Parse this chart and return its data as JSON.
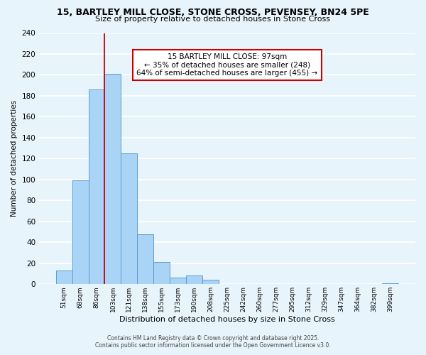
{
  "title": "15, BARTLEY MILL CLOSE, STONE CROSS, PEVENSEY, BN24 5PE",
  "subtitle": "Size of property relative to detached houses in Stone Cross",
  "xlabel": "Distribution of detached houses by size in Stone Cross",
  "ylabel": "Number of detached properties",
  "bar_labels": [
    "51sqm",
    "68sqm",
    "86sqm",
    "103sqm",
    "121sqm",
    "138sqm",
    "155sqm",
    "173sqm",
    "190sqm",
    "208sqm",
    "225sqm",
    "242sqm",
    "260sqm",
    "277sqm",
    "295sqm",
    "312sqm",
    "329sqm",
    "347sqm",
    "364sqm",
    "382sqm",
    "399sqm"
  ],
  "bar_values": [
    13,
    99,
    186,
    201,
    125,
    48,
    21,
    6,
    8,
    4,
    0,
    0,
    0,
    0,
    0,
    0,
    0,
    0,
    0,
    0,
    1
  ],
  "bar_color": "#aad4f5",
  "bar_edge_color": "#5b9bd5",
  "property_line_x": 2.5,
  "property_line_color": "#cc0000",
  "annotation_title": "15 BARTLEY MILL CLOSE: 97sqm",
  "annotation_line1": "← 35% of detached houses are smaller (248)",
  "annotation_line2": "64% of semi-detached houses are larger (455) →",
  "annotation_box_color": "#ffffff",
  "annotation_box_edge_color": "#cc0000",
  "ylim": [
    0,
    240
  ],
  "yticks": [
    0,
    20,
    40,
    60,
    80,
    100,
    120,
    140,
    160,
    180,
    200,
    220,
    240
  ],
  "footer_line1": "Contains HM Land Registry data © Crown copyright and database right 2025.",
  "footer_line2": "Contains public sector information licensed under the Open Government Licence v3.0.",
  "bg_color": "#e8f4fc",
  "grid_color": "#ffffff"
}
